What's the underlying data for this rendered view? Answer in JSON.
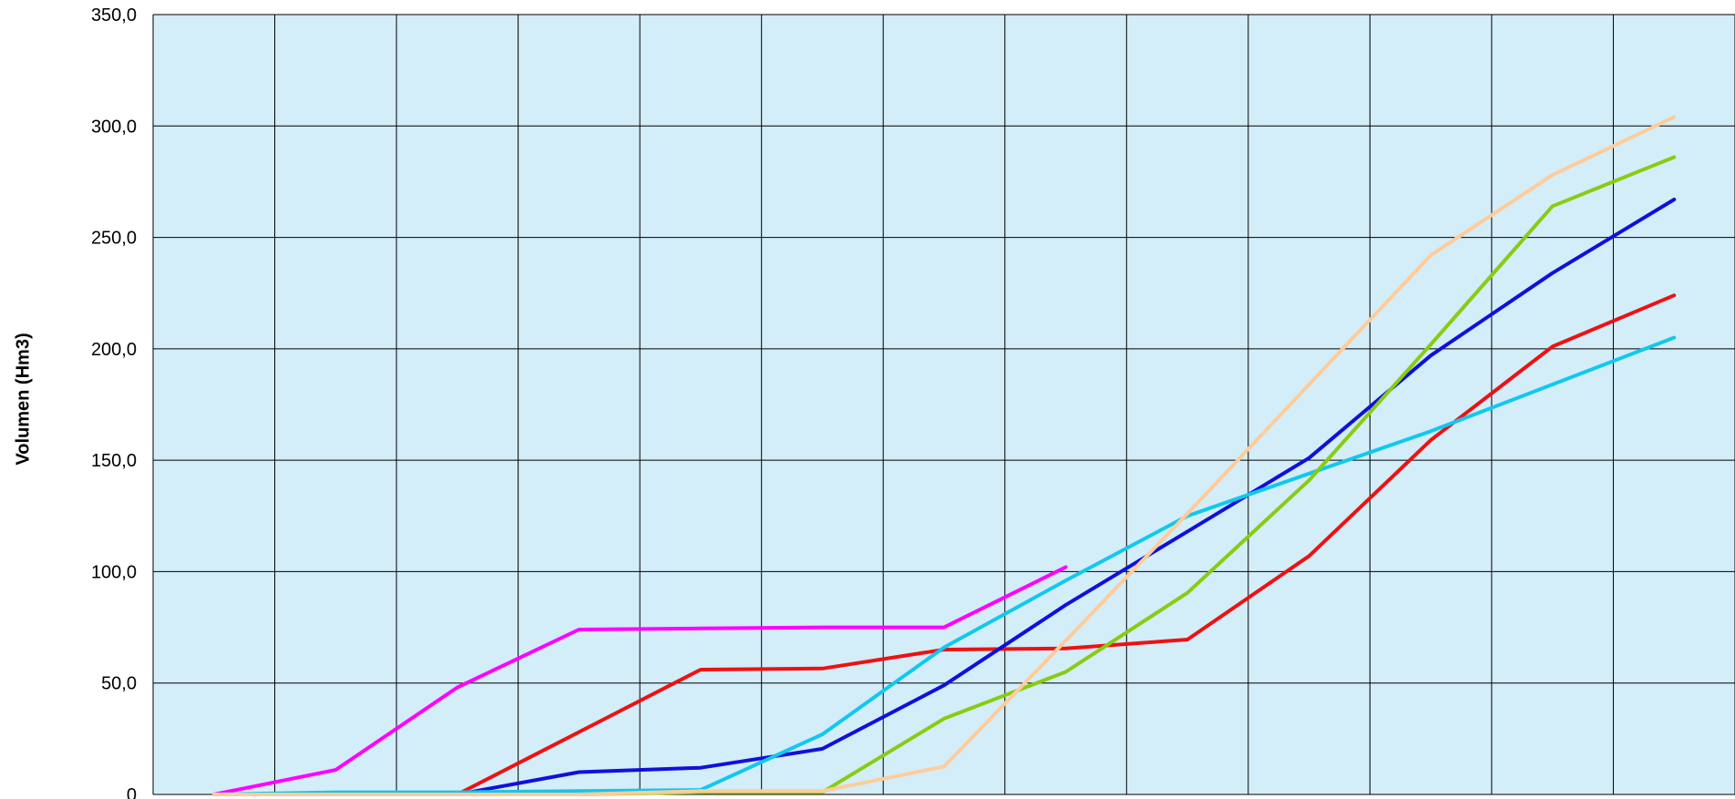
{
  "chart_data": {
    "type": "line",
    "ylabel": "Volumen (Hm3)",
    "ylim": [
      0,
      350
    ],
    "y_ticks": [
      "0",
      "50,0",
      "100,0",
      "150,0",
      "200,0",
      "250,0",
      "300,0",
      "350,0"
    ],
    "y_tick_values": [
      0,
      50,
      100,
      150,
      200,
      250,
      300,
      350
    ],
    "x_categories": 13,
    "grid": true,
    "colors": {
      "plot_background": "#d3edf9",
      "grid": "#000000"
    },
    "series": [
      {
        "color": "#ff00ff",
        "values": [
          0,
          11,
          48,
          74,
          74.5,
          75,
          75,
          102
        ]
      },
      {
        "color": "#ee1111",
        "values": [
          0,
          0,
          0,
          28,
          56,
          56.5,
          65,
          65.5,
          69.5,
          107,
          159,
          201,
          224
        ]
      },
      {
        "color": "#1010dd",
        "values": [
          0,
          0,
          0,
          10,
          12,
          20.5,
          49,
          85,
          118,
          151,
          197,
          234,
          267
        ]
      },
      {
        "color": "#11c8ee",
        "values": [
          0,
          1,
          1,
          1.5,
          2,
          27,
          66,
          96,
          125,
          144,
          163,
          184,
          205
        ]
      },
      {
        "color": "#88cc11",
        "values": [
          0,
          0,
          0,
          0,
          1,
          1,
          34,
          55,
          90.5,
          141,
          202,
          264,
          286
        ]
      },
      {
        "color": "#ffcc99",
        "values": [
          0,
          0,
          0,
          0,
          1.5,
          1.5,
          12.5,
          69,
          126,
          184,
          242,
          278,
          304
        ]
      }
    ]
  }
}
